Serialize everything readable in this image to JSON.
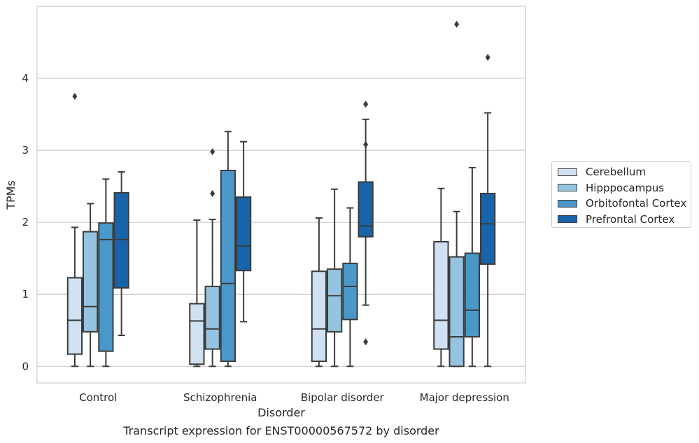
{
  "chart_data": {
    "type": "box",
    "xlabel": "Disorder",
    "ylabel": "TPMs",
    "title": "Transcript expression for ENST00000567572 by disorder",
    "ylim": [
      -0.23,
      5.0
    ],
    "yticks": [
      0,
      1,
      2,
      3,
      4
    ],
    "grid": true,
    "legend_placement": "right",
    "categories": [
      "Control",
      "Schizophrenia",
      "Bipolar disorder",
      "Major depression"
    ],
    "series": [
      {
        "name": "Cerebellum",
        "color": "#d0e1f2",
        "boxes": [
          {
            "whisker_low": 0.0,
            "q1": 0.17,
            "median": 0.64,
            "q3": 1.23,
            "whisker_high": 1.93,
            "outliers": [
              3.75
            ]
          },
          {
            "whisker_low": 0.0,
            "q1": 0.03,
            "median": 0.63,
            "q3": 0.87,
            "whisker_high": 2.03,
            "outliers": []
          },
          {
            "whisker_low": 0.0,
            "q1": 0.07,
            "median": 0.52,
            "q3": 1.32,
            "whisker_high": 2.06,
            "outliers": []
          },
          {
            "whisker_low": 0.0,
            "q1": 0.24,
            "median": 0.64,
            "q3": 1.73,
            "whisker_high": 2.47,
            "outliers": []
          }
        ]
      },
      {
        "name": "Hipppocampus",
        "color": "#94c4df",
        "boxes": [
          {
            "whisker_low": 0.0,
            "q1": 0.48,
            "median": 0.83,
            "q3": 1.87,
            "whisker_high": 2.26,
            "outliers": []
          },
          {
            "whisker_low": 0.0,
            "q1": 0.24,
            "median": 0.52,
            "q3": 1.11,
            "whisker_high": 2.04,
            "outliers": [
              2.98,
              2.4
            ]
          },
          {
            "whisker_low": 0.0,
            "q1": 0.48,
            "median": 0.98,
            "q3": 1.35,
            "whisker_high": 2.46,
            "outliers": []
          },
          {
            "whisker_low": 0.0,
            "q1": 0.0,
            "median": 0.41,
            "q3": 1.52,
            "whisker_high": 2.15,
            "outliers": [
              4.75
            ]
          }
        ]
      },
      {
        "name": "Orbitofontal Cortex",
        "color": "#4a98c9",
        "boxes": [
          {
            "whisker_low": 0.0,
            "q1": 0.21,
            "median": 1.76,
            "q3": 1.99,
            "whisker_high": 2.6,
            "outliers": []
          },
          {
            "whisker_low": 0.0,
            "q1": 0.07,
            "median": 1.15,
            "q3": 2.72,
            "whisker_high": 3.26,
            "outliers": []
          },
          {
            "whisker_low": 0.0,
            "q1": 0.65,
            "median": 1.11,
            "q3": 1.43,
            "whisker_high": 2.2,
            "outliers": []
          },
          {
            "whisker_low": 0.0,
            "q1": 0.41,
            "median": 0.78,
            "q3": 1.57,
            "whisker_high": 2.76,
            "outliers": []
          }
        ]
      },
      {
        "name": "Prefrontal Cortex",
        "color": "#1764ab",
        "boxes": [
          {
            "whisker_low": 0.43,
            "q1": 1.09,
            "median": 1.76,
            "q3": 2.41,
            "whisker_high": 2.7,
            "outliers": []
          },
          {
            "whisker_low": 0.62,
            "q1": 1.33,
            "median": 1.67,
            "q3": 2.35,
            "whisker_high": 3.12,
            "outliers": []
          },
          {
            "whisker_low": 0.85,
            "q1": 1.8,
            "median": 1.95,
            "q3": 2.56,
            "whisker_high": 3.43,
            "outliers": [
              3.64,
              3.08,
              0.34
            ]
          },
          {
            "whisker_low": 0.0,
            "q1": 1.42,
            "median": 1.98,
            "q3": 2.4,
            "whisker_high": 3.52,
            "outliers": [
              4.29
            ]
          }
        ]
      }
    ]
  }
}
